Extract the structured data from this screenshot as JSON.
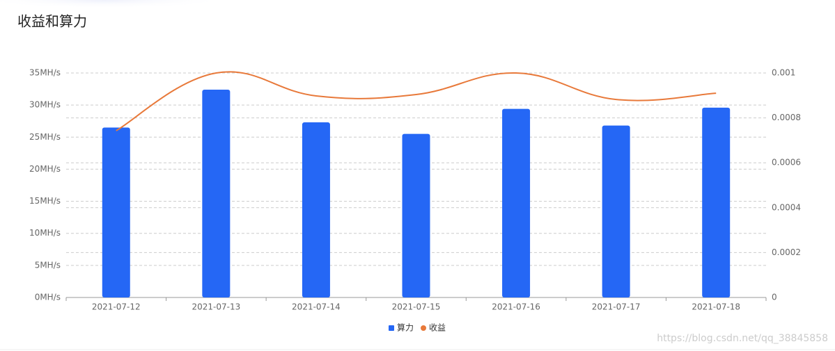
{
  "chart_data": {
    "type": "combo",
    "title": "收益和算力",
    "categories": [
      "2021-07-12",
      "2021-07-13",
      "2021-07-14",
      "2021-07-15",
      "2021-07-16",
      "2021-07-17",
      "2021-07-18"
    ],
    "series": [
      {
        "name": "算力",
        "type": "bar",
        "color": "#2567f5",
        "values": [
          26.5,
          32.4,
          27.3,
          25.5,
          29.4,
          26.8,
          29.6
        ]
      },
      {
        "name": "收益",
        "type": "line",
        "axis": "y2",
        "color": "#e8793a",
        "values": [
          0.000743,
          0.001,
          0.000898,
          0.000904,
          0.001,
          0.000882,
          0.00091
        ]
      }
    ],
    "ylim": [
      0,
      35
    ],
    "yticks": [
      {
        "value": 0,
        "label": "0MH/s"
      },
      {
        "value": 5,
        "label": "5MH/s"
      },
      {
        "value": 10,
        "label": "10MH/s"
      },
      {
        "value": 15,
        "label": "15MH/s"
      },
      {
        "value": 20,
        "label": "20MH/s"
      },
      {
        "value": 25,
        "label": "25MH/s"
      },
      {
        "value": 30,
        "label": "30MH/s"
      },
      {
        "value": 35,
        "label": "35MH/s"
      }
    ],
    "y2lim": [
      0,
      0.001
    ],
    "y2ticks": [
      0,
      0.0002,
      0.0004,
      0.0006,
      0.0008,
      0.001
    ],
    "grid": true,
    "legend": "bottom",
    "watermark": "https://blog.csdn.net/qq_38845858"
  }
}
